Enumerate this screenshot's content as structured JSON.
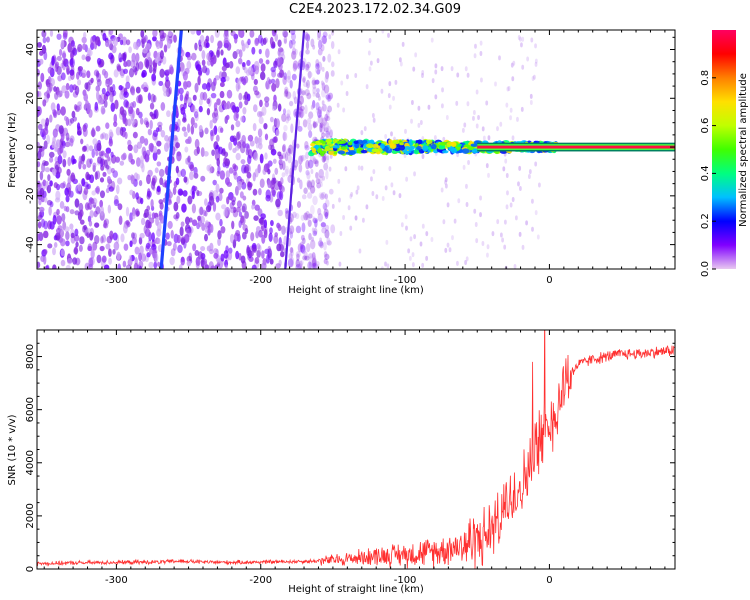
{
  "title": "C2E4.2023.172.02.34.G09",
  "chart_data": [
    {
      "type": "heatmap",
      "title": "",
      "xlabel": "Height of straight line (km)",
      "ylabel": "Frequency (Hz)",
      "xlim": [
        -355,
        87
      ],
      "ylim": [
        -50,
        48
      ],
      "xticks": [
        -300,
        -200,
        -100,
        0
      ],
      "yticks": [
        -40,
        -20,
        0,
        20,
        40
      ],
      "colorbar": {
        "label": "Normalized spectral amplitude",
        "range": [
          0.0,
          1.0
        ],
        "ticks": [
          0.0,
          0.2,
          0.4,
          0.6,
          0.8
        ],
        "colors": [
          "#e8c8f0",
          "#8000ff",
          "#0000ff",
          "#00c0ff",
          "#00ff80",
          "#40ff00",
          "#c0ff00",
          "#ffe000",
          "#ff8000",
          "#ff0000",
          "#ff0060"
        ]
      },
      "features": {
        "noise_region_x": [
          -355,
          -165
        ],
        "doppler_line_1": {
          "x_at_ymin": -269,
          "x_at_ymax": -255
        },
        "doppler_line_2": {
          "x_at_ymin": -183,
          "x_at_ymax": -170
        },
        "signal_band": {
          "x": [
            -165,
            87
          ],
          "center_hz": 0
        }
      }
    },
    {
      "type": "line",
      "title": "",
      "xlabel": "Height of straight line (km)",
      "ylabel": "SNR (10 * v/v)",
      "xlim": [
        -355,
        87
      ],
      "ylim": [
        0,
        9000
      ],
      "xticks": [
        -300,
        -200,
        -100,
        0
      ],
      "yticks": [
        0,
        2000,
        4000,
        6000,
        8000
      ],
      "line_color": "#ff3030",
      "series": [
        {
          "x": [
            -355,
            -330,
            -300,
            -270,
            -255,
            -240,
            -220,
            -200,
            -180,
            -160,
            -140,
            -120,
            -100,
            -80,
            -60,
            -45,
            -35,
            -28,
            -22,
            -15,
            -10,
            -5,
            0,
            5,
            10,
            15,
            20,
            30,
            40,
            50,
            60,
            70,
            80,
            87
          ],
          "values": [
            200,
            230,
            250,
            260,
            300,
            260,
            250,
            260,
            280,
            300,
            380,
            500,
            550,
            650,
            900,
            1200,
            1800,
            2500,
            3000,
            3600,
            4500,
            5000,
            5400,
            6000,
            7000,
            7400,
            7700,
            7900,
            8000,
            8100,
            8100,
            8150,
            8200,
            8250
          ]
        }
      ]
    }
  ]
}
